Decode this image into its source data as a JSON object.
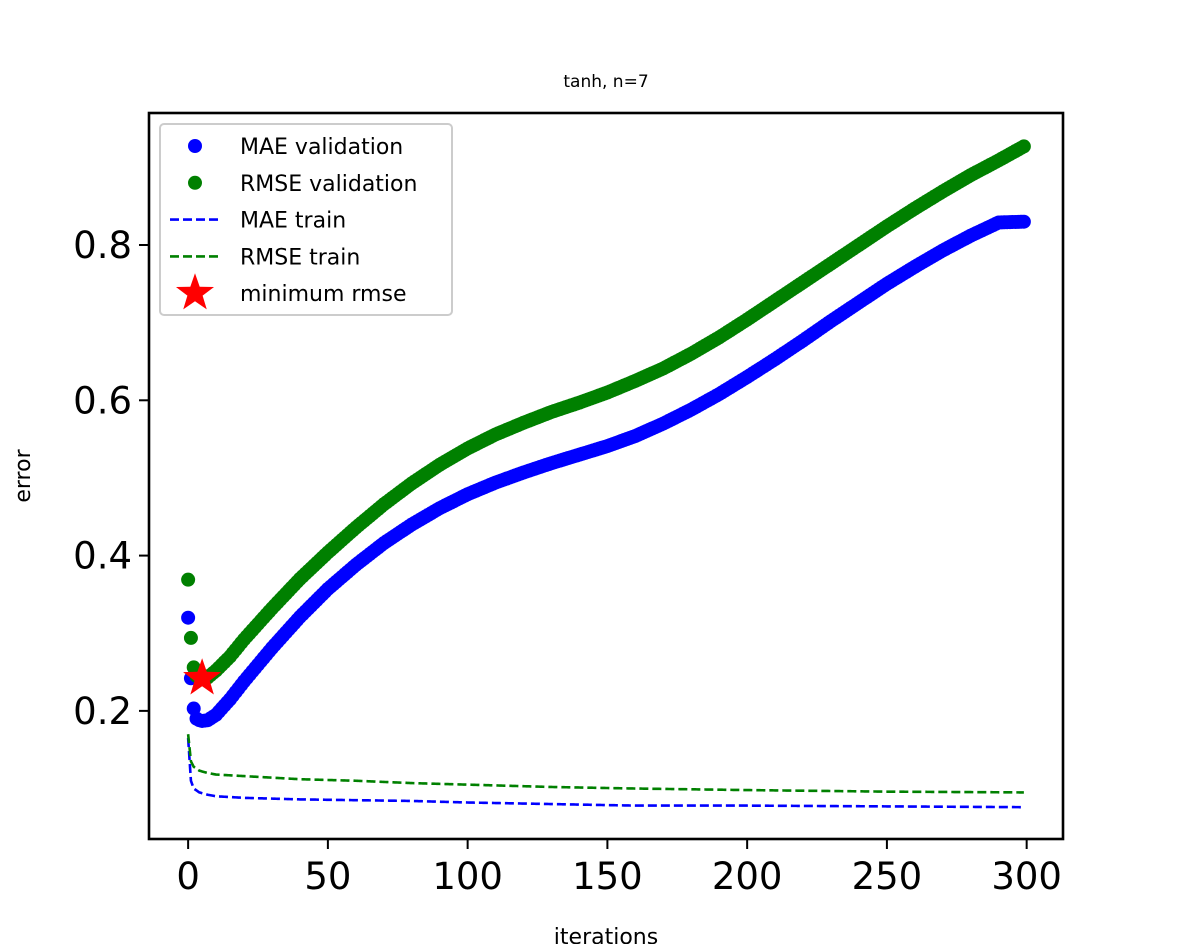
{
  "chart_data": {
    "type": "line",
    "title": "tanh, n=7",
    "xlabel": "iterations",
    "ylabel": "error",
    "xlim": [
      -14,
      313
    ],
    "ylim": [
      0.035,
      0.97
    ],
    "x_ticks": [
      0,
      50,
      100,
      150,
      200,
      250,
      300
    ],
    "y_ticks": [
      0.2,
      0.4,
      0.6,
      0.8
    ],
    "x_tick_labels": [
      "0",
      "50",
      "100",
      "150",
      "200",
      "250",
      "300"
    ],
    "y_tick_labels": [
      "0.2",
      "0.4",
      "0.6",
      "0.8"
    ],
    "grid": false,
    "legend_position": "top-left",
    "series": [
      {
        "name": "MAE validation",
        "style": "markers",
        "color": "#0000ff",
        "x_range": [
          0,
          299
        ],
        "anchors": [
          [
            0,
            0.32
          ],
          [
            1,
            0.242
          ],
          [
            2,
            0.203
          ],
          [
            3,
            0.19
          ],
          [
            4,
            0.188
          ],
          [
            5,
            0.187
          ],
          [
            7,
            0.188
          ],
          [
            10,
            0.195
          ],
          [
            15,
            0.215
          ],
          [
            20,
            0.238
          ],
          [
            30,
            0.281
          ],
          [
            40,
            0.321
          ],
          [
            50,
            0.357
          ],
          [
            60,
            0.388
          ],
          [
            70,
            0.416
          ],
          [
            80,
            0.44
          ],
          [
            90,
            0.461
          ],
          [
            100,
            0.479
          ],
          [
            110,
            0.494
          ],
          [
            120,
            0.507
          ],
          [
            130,
            0.519
          ],
          [
            140,
            0.53
          ],
          [
            150,
            0.541
          ],
          [
            160,
            0.554
          ],
          [
            170,
            0.57
          ],
          [
            180,
            0.588
          ],
          [
            190,
            0.608
          ],
          [
            200,
            0.63
          ],
          [
            210,
            0.653
          ],
          [
            220,
            0.677
          ],
          [
            230,
            0.702
          ],
          [
            240,
            0.726
          ],
          [
            250,
            0.75
          ],
          [
            260,
            0.772
          ],
          [
            270,
            0.793
          ],
          [
            280,
            0.812
          ],
          [
            290,
            0.829
          ],
          [
            299,
            0.83
          ]
        ]
      },
      {
        "name": "RMSE validation",
        "style": "markers",
        "color": "#008000",
        "x_range": [
          0,
          299
        ],
        "anchors": [
          [
            0,
            0.369
          ],
          [
            1,
            0.294
          ],
          [
            2,
            0.256
          ],
          [
            3,
            0.245
          ],
          [
            4,
            0.244
          ],
          [
            5,
            0.242
          ],
          [
            7,
            0.243
          ],
          [
            10,
            0.252
          ],
          [
            15,
            0.27
          ],
          [
            20,
            0.292
          ],
          [
            30,
            0.332
          ],
          [
            40,
            0.37
          ],
          [
            50,
            0.404
          ],
          [
            60,
            0.436
          ],
          [
            70,
            0.466
          ],
          [
            80,
            0.493
          ],
          [
            90,
            0.517
          ],
          [
            100,
            0.538
          ],
          [
            110,
            0.556
          ],
          [
            120,
            0.571
          ],
          [
            130,
            0.585
          ],
          [
            140,
            0.597
          ],
          [
            150,
            0.61
          ],
          [
            160,
            0.625
          ],
          [
            170,
            0.641
          ],
          [
            180,
            0.66
          ],
          [
            190,
            0.681
          ],
          [
            200,
            0.704
          ],
          [
            210,
            0.728
          ],
          [
            220,
            0.752
          ],
          [
            230,
            0.776
          ],
          [
            240,
            0.8
          ],
          [
            250,
            0.824
          ],
          [
            260,
            0.847
          ],
          [
            270,
            0.869
          ],
          [
            280,
            0.89
          ],
          [
            290,
            0.909
          ],
          [
            299,
            0.927
          ]
        ]
      },
      {
        "name": "MAE train",
        "style": "dashed",
        "color": "#0000ff",
        "anchors": [
          [
            0,
            0.165
          ],
          [
            1,
            0.11
          ],
          [
            2,
            0.1
          ],
          [
            4,
            0.095
          ],
          [
            7,
            0.092
          ],
          [
            10,
            0.09
          ],
          [
            20,
            0.088
          ],
          [
            40,
            0.086
          ],
          [
            60,
            0.085
          ],
          [
            80,
            0.084
          ],
          [
            100,
            0.082
          ],
          [
            130,
            0.08
          ],
          [
            160,
            0.078
          ],
          [
            200,
            0.078
          ],
          [
            250,
            0.077
          ],
          [
            299,
            0.076
          ]
        ]
      },
      {
        "name": "RMSE train",
        "style": "dashed",
        "color": "#008000",
        "anchors": [
          [
            0,
            0.17
          ],
          [
            1,
            0.135
          ],
          [
            2,
            0.128
          ],
          [
            4,
            0.123
          ],
          [
            7,
            0.12
          ],
          [
            10,
            0.118
          ],
          [
            20,
            0.116
          ],
          [
            40,
            0.112
          ],
          [
            60,
            0.11
          ],
          [
            80,
            0.107
          ],
          [
            100,
            0.105
          ],
          [
            130,
            0.102
          ],
          [
            160,
            0.1
          ],
          [
            200,
            0.098
          ],
          [
            250,
            0.096
          ],
          [
            299,
            0.095
          ]
        ]
      },
      {
        "name": "minimum rmse",
        "style": "star",
        "color": "#ff0000",
        "x": [
          5
        ],
        "y": [
          0.242
        ]
      }
    ]
  }
}
